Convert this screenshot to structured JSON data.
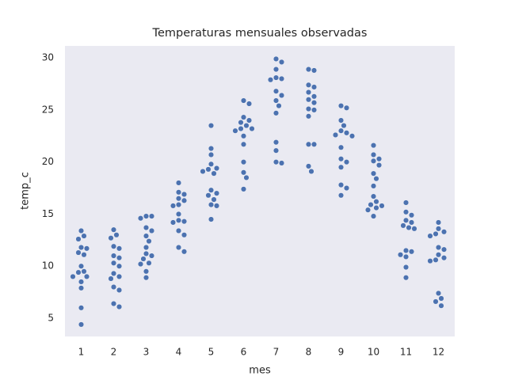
{
  "chart_data": {
    "type": "swarm",
    "title": "Temperaturas mensuales observadas",
    "x_label": "mes",
    "y_label": "temp_c",
    "categories": [
      "1",
      "2",
      "3",
      "4",
      "5",
      "6",
      "7",
      "8",
      "9",
      "10",
      "11",
      "12"
    ],
    "values": [
      [
        13.4,
        12.9,
        12.6,
        11.8,
        11.7,
        11.3,
        11.1,
        10.0,
        9.5,
        9.4,
        9.0,
        9.0,
        8.5,
        7.9,
        6.0,
        4.4
      ],
      [
        13.5,
        13.0,
        12.7,
        11.9,
        11.7,
        11.0,
        10.8,
        10.3,
        10.0,
        9.3,
        9.0,
        8.8,
        8.0,
        7.7,
        6.4,
        6.1
      ],
      [
        14.8,
        14.8,
        14.6,
        13.7,
        13.4,
        12.9,
        12.4,
        11.8,
        11.2,
        11.0,
        10.7,
        10.3,
        10.2,
        9.5,
        8.9
      ],
      [
        18.0,
        17.1,
        16.9,
        16.5,
        16.3,
        15.9,
        15.8,
        15.0,
        14.4,
        14.3,
        14.2,
        13.4,
        13.0,
        11.8,
        11.4
      ],
      [
        23.5,
        21.3,
        20.7,
        19.8,
        19.4,
        19.3,
        19.1,
        18.9,
        17.3,
        17.0,
        16.8,
        16.4,
        15.9,
        15.8,
        14.5
      ],
      [
        25.9,
        25.6,
        24.3,
        24.0,
        23.8,
        23.5,
        23.2,
        23.2,
        23.0,
        22.5,
        21.7,
        20.0,
        19.0,
        18.5,
        17.4
      ],
      [
        29.9,
        29.6,
        28.9,
        28.1,
        28.0,
        27.9,
        26.8,
        26.4,
        25.9,
        25.4,
        24.7,
        21.9,
        21.1,
        20.0,
        19.9
      ],
      [
        28.9,
        28.8,
        27.4,
        27.2,
        26.7,
        26.3,
        26.0,
        25.7,
        25.1,
        25.0,
        24.4,
        21.7,
        21.7,
        19.6,
        19.1
      ],
      [
        25.4,
        25.2,
        24.0,
        23.5,
        23.0,
        22.8,
        22.6,
        22.5,
        21.4,
        20.3,
        20.0,
        19.5,
        17.8,
        17.5,
        16.8
      ],
      [
        21.6,
        20.7,
        20.3,
        20.1,
        19.7,
        18.9,
        18.4,
        17.7,
        16.7,
        16.2,
        15.9,
        15.8,
        15.6,
        15.4,
        14.8
      ],
      [
        16.1,
        15.2,
        14.9,
        14.4,
        14.2,
        13.9,
        13.7,
        13.6,
        11.5,
        11.4,
        11.1,
        10.9,
        9.9,
        8.9
      ],
      [
        14.2,
        13.6,
        13.3,
        13.1,
        12.9,
        11.8,
        11.6,
        11.1,
        10.8,
        10.6,
        10.5,
        7.4,
        6.9,
        6.6,
        6.2
      ]
    ],
    "color": "#4c72b0",
    "ylim": [
      3.25,
      31.15
    ],
    "yticks": [
      5,
      10,
      15,
      20,
      25,
      30
    ],
    "grid": false
  }
}
